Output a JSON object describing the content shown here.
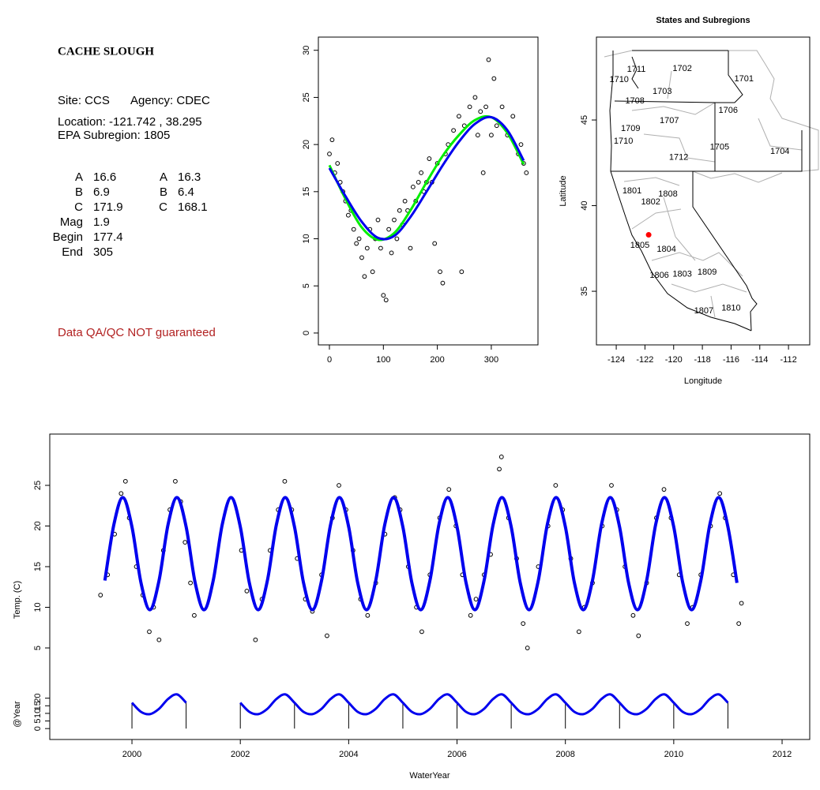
{
  "site_panel": {
    "title": "CACHE SLOUGH",
    "site": "Site: CCS",
    "agency": "Agency: CDEC",
    "location": "Location: -121.742 , 38.295",
    "subregion": "EPA Subregion: 1805",
    "params": [
      {
        "label": "A",
        "value": "16.6"
      },
      {
        "label": "B",
        "value": "6.9"
      },
      {
        "label": "C",
        "value": "171.9"
      },
      {
        "label": "Mag",
        "value": "1.9"
      },
      {
        "label": "Begin",
        "value": "177.4"
      },
      {
        "label": "End",
        "value": "305"
      }
    ],
    "params2": [
      {
        "label": "A",
        "value": "16.3"
      },
      {
        "label": "B",
        "value": "6.4"
      },
      {
        "label": "C",
        "value": "168.1"
      }
    ],
    "note": "Data QA/QC NOT guaranteed"
  },
  "chart_data": [
    {
      "type": "scatter",
      "color": "#000000",
      "xlim": [
        -20.5,
        386.5
      ],
      "ylim": [
        -1.26,
        31.4
      ],
      "xticks": [
        0,
        100,
        200,
        300
      ],
      "yticks": [
        0,
        5,
        10,
        15,
        20,
        25,
        30
      ],
      "x": [
        0,
        5,
        10,
        15,
        20,
        25,
        30,
        35,
        40,
        45,
        50,
        55,
        60,
        65,
        70,
        75,
        80,
        85,
        90,
        95,
        100,
        105,
        110,
        115,
        120,
        125,
        130,
        135,
        140,
        145,
        150,
        155,
        160,
        165,
        170,
        175,
        180,
        185,
        190,
        195,
        200,
        205,
        210,
        215,
        220,
        230,
        240,
        245,
        250,
        260,
        270,
        275,
        280,
        285,
        290,
        295,
        300,
        305,
        310,
        320,
        330,
        340,
        350,
        355,
        360,
        365
      ],
      "values": [
        19,
        20.5,
        17,
        18,
        16,
        15,
        14,
        12.5,
        13,
        11,
        9.5,
        10,
        8,
        6,
        9,
        11,
        6.5,
        10,
        12,
        9,
        4,
        3.5,
        11,
        8.5,
        12,
        10,
        13,
        11.5,
        14,
        13,
        9,
        15.5,
        14,
        16,
        17,
        15,
        16,
        18.5,
        16,
        9.5,
        18,
        6.5,
        5.3,
        19,
        20,
        21.5,
        23,
        6.5,
        22,
        24,
        25,
        21,
        23.5,
        17,
        24,
        29,
        21,
        27,
        22,
        24,
        21,
        23,
        19,
        20,
        18,
        17
      ],
      "series": [
        {
          "color": "#00ee00",
          "x": [
            0,
            30,
            60,
            90,
            120,
            150,
            180,
            210,
            240,
            270,
            300,
            330,
            360
          ],
          "values": [
            17.8,
            14.2,
            11.2,
            9.9,
            10.6,
            13,
            16,
            18.8,
            21,
            22.6,
            22.9,
            21.2,
            17.9
          ]
        },
        {
          "color": "#0000ee",
          "x": [
            0,
            30,
            60,
            90,
            120,
            150,
            180,
            210,
            240,
            270,
            300,
            330,
            360
          ],
          "values": [
            17.5,
            14.5,
            11.8,
            10.1,
            10.3,
            12.3,
            15,
            17.8,
            20.3,
            22.2,
            22.9,
            21.5,
            18.3
          ]
        }
      ]
    },
    {
      "type": "map",
      "title": "States and Subregions",
      "xlabel": "Longitude",
      "ylabel": "Latitude",
      "xlim": [
        -125.38,
        -110.52
      ],
      "ylim": [
        31.87,
        49.84
      ],
      "xticks": [
        -124,
        -122,
        -120,
        -118,
        -116,
        -114,
        -112
      ],
      "yticks": [
        35,
        40,
        45
      ],
      "regions": {
        "labels": [
          "1711",
          "1710",
          "1702",
          "1701",
          "1703",
          "1708",
          "1706",
          "1707",
          "1709",
          "1710",
          "1705",
          "1704",
          "1712",
          "1801",
          "1808",
          "1802",
          "1805",
          "1804",
          "1806",
          "1803",
          "1809",
          "1807",
          "1810"
        ],
        "lon": [
          -122.6,
          -123.8,
          -119.4,
          -115.1,
          -120.8,
          -122.7,
          -116.2,
          -120.3,
          -123,
          -123.5,
          -116.8,
          -112.6,
          -119.65,
          -122.9,
          -120.4,
          -121.6,
          -122.35,
          -120.5,
          -121,
          -119.4,
          -117.67,
          -117.9,
          -116
        ],
        "lat": [
          47.95,
          47.35,
          48,
          47.4,
          46.66,
          46.1,
          45.55,
          44.95,
          44.5,
          43.75,
          43.4,
          43.15,
          42.8,
          40.85,
          40.67,
          40.2,
          37.67,
          37.44,
          35.92,
          36,
          36.1,
          33.85,
          34
        ]
      },
      "site": {
        "lon": -121.742,
        "lat": 38.295,
        "color": "#ff0000"
      }
    },
    {
      "type": "scatter",
      "color": "#000000",
      "xlabel": "WaterYear",
      "ylabel": "Temp. (C)",
      "xlim": [
        1998.483,
        2012.51
      ],
      "ylim": [
        -6.26,
        31.31
      ],
      "xticks": [
        2000,
        2002,
        2004,
        2006,
        2008,
        2010,
        2012
      ],
      "yticks": [
        5,
        10,
        15,
        20,
        25
      ],
      "x": [
        1999.42,
        1999.55,
        1999.68,
        1999.8,
        1999.88,
        1999.95,
        2000.08,
        2000.2,
        2000.32,
        2000.4,
        2000.5,
        2000.58,
        2000.7,
        2000.8,
        2000.9,
        2000.98,
        2001.08,
        2001.15,
        2002.02,
        2002.12,
        2002.28,
        2002.4,
        2002.55,
        2002.7,
        2002.82,
        2002.95,
        2003.05,
        2003.2,
        2003.33,
        2003.5,
        2003.6,
        2003.7,
        2003.82,
        2003.95,
        2004.08,
        2004.22,
        2004.35,
        2004.5,
        2004.67,
        2004.85,
        2004.95,
        2005.1,
        2005.25,
        2005.35,
        2005.5,
        2005.68,
        2005.85,
        2005.98,
        2006.1,
        2006.25,
        2006.35,
        2006.5,
        2006.62,
        2006.78,
        2006.82,
        2006.95,
        2007.1,
        2007.22,
        2007.3,
        2007.5,
        2007.68,
        2007.82,
        2007.95,
        2008.1,
        2008.25,
        2008.35,
        2008.5,
        2008.68,
        2008.85,
        2008.95,
        2009.1,
        2009.25,
        2009.35,
        2009.5,
        2009.68,
        2009.82,
        2009.95,
        2010.1,
        2010.25,
        2010.35,
        2010.5,
        2010.68,
        2010.85,
        2010.95,
        2011.1,
        2011.2,
        2011.25
      ],
      "values": [
        11.5,
        14,
        19,
        24,
        25.5,
        21,
        15,
        11.5,
        7,
        10,
        6,
        17,
        22,
        25.5,
        23,
        18,
        13,
        9,
        17,
        12,
        6,
        11,
        17,
        22,
        25.5,
        22,
        16,
        11,
        9.5,
        14,
        6.5,
        21,
        25,
        22,
        17,
        11,
        9,
        13,
        19,
        23.5,
        22,
        15,
        10,
        7,
        14,
        21,
        24.5,
        20,
        14,
        9,
        11,
        14,
        16.5,
        27,
        28.5,
        21,
        16,
        8,
        5,
        15,
        20,
        25,
        22,
        16,
        7,
        10,
        13,
        20,
        25,
        22,
        15,
        9,
        6.5,
        13,
        21,
        24.5,
        21,
        14,
        8,
        10,
        14,
        20,
        24,
        21,
        14,
        8,
        10.5
      ],
      "series": [
        {
          "color": "#0000ee",
          "x": [
            1999.5,
            1999.667,
            1999.833,
            2000,
            2000.167,
            2000.333,
            2000.5,
            2000.667,
            2000.833,
            2001,
            2001.167,
            2001.333,
            2001.5,
            2001.667,
            2001.833,
            2002,
            2002.167,
            2002.333,
            2002.5,
            2002.667,
            2002.833,
            2003,
            2003.167,
            2003.333,
            2003.5,
            2003.667,
            2003.833,
            2004,
            2004.167,
            2004.333,
            2004.5,
            2004.667,
            2004.833,
            2005,
            2005.167,
            2005.333,
            2005.5,
            2005.667,
            2005.833,
            2006,
            2006.167,
            2006.333,
            2006.5,
            2006.667,
            2006.833,
            2007,
            2007.167,
            2007.333,
            2007.5,
            2007.667,
            2007.833,
            2008,
            2008.167,
            2008.333,
            2008.5,
            2008.667,
            2008.833,
            2009,
            2009.167,
            2009.333,
            2009.5,
            2009.667,
            2009.833,
            2010,
            2010.167,
            2010.333,
            2010.5,
            2010.667,
            2010.833,
            2011,
            2011.167
          ],
          "values": [
            13.3,
            20.2,
            23.5,
            19.9,
            13,
            9.7,
            13.3,
            20.2,
            23.5,
            19.9,
            13,
            9.7,
            13.3,
            20.2,
            23.5,
            19.9,
            13,
            9.7,
            13.3,
            20.2,
            23.5,
            19.9,
            13,
            9.7,
            13.3,
            20.2,
            23.5,
            19.9,
            13,
            9.7,
            13.3,
            20.2,
            23.5,
            19.9,
            13,
            9.7,
            13.3,
            20.2,
            23.5,
            19.9,
            13,
            9.7,
            13.3,
            20.2,
            23.5,
            19.9,
            13,
            9.7,
            13.3,
            20.2,
            23.5,
            19.9,
            13,
            9.7,
            13.3,
            20.2,
            23.5,
            19.9,
            13,
            9.7,
            13.3,
            20.2,
            23.5,
            19.9,
            13,
            9.7,
            13.3,
            20.2,
            23.5,
            19.9,
            13
          ]
        }
      ]
    },
    {
      "type": "line",
      "ylabel": "@Year",
      "color": "#0000ee",
      "ylim": [
        -7.18,
        193.8
      ],
      "yticks": [
        0,
        5,
        10,
        15,
        20
      ],
      "x": [
        2000,
        2000.167,
        2000.333,
        2000.5,
        2000.667,
        2000.833,
        2001,
        2001.5,
        2002,
        2002.167,
        2002.333,
        2002.5,
        2002.667,
        2002.833,
        2003,
        2003.167,
        2003.333,
        2003.5,
        2003.667,
        2003.833,
        2004,
        2004.167,
        2004.333,
        2004.5,
        2004.667,
        2004.833,
        2005,
        2005.167,
        2005.333,
        2005.5,
        2005.667,
        2005.833,
        2006,
        2006.167,
        2006.333,
        2006.5,
        2006.667,
        2006.833,
        2007,
        2007.167,
        2007.333,
        2007.5,
        2007.667,
        2007.833,
        2008,
        2008.167,
        2008.333,
        2008.5,
        2008.667,
        2008.833,
        2009,
        2009.167,
        2009.333,
        2009.5,
        2009.667,
        2009.833,
        2010,
        2010.167,
        2010.333,
        2010.5,
        2010.667,
        2010.833,
        2011
      ],
      "values": [
        17,
        11,
        9.5,
        13,
        19.5,
        22.5,
        17,
        null,
        17,
        11,
        9.5,
        13,
        19.5,
        22.5,
        17,
        11,
        9.5,
        13,
        19.5,
        22.5,
        17,
        11,
        9.5,
        13,
        19.5,
        22.5,
        17,
        11,
        9.5,
        13,
        19.5,
        22.5,
        17,
        11,
        9.5,
        13,
        19.5,
        22.5,
        17,
        11,
        9.5,
        13,
        19.5,
        22.5,
        17,
        11,
        9.5,
        13,
        19.5,
        22.5,
        17,
        11,
        9.5,
        13,
        19.5,
        22.5,
        17,
        11,
        9.5,
        13,
        19.5,
        22.5,
        17
      ],
      "year_lines": [
        2000,
        2001,
        2002,
        2003,
        2004,
        2005,
        2006,
        2007,
        2008,
        2009,
        2010,
        2011
      ]
    }
  ]
}
